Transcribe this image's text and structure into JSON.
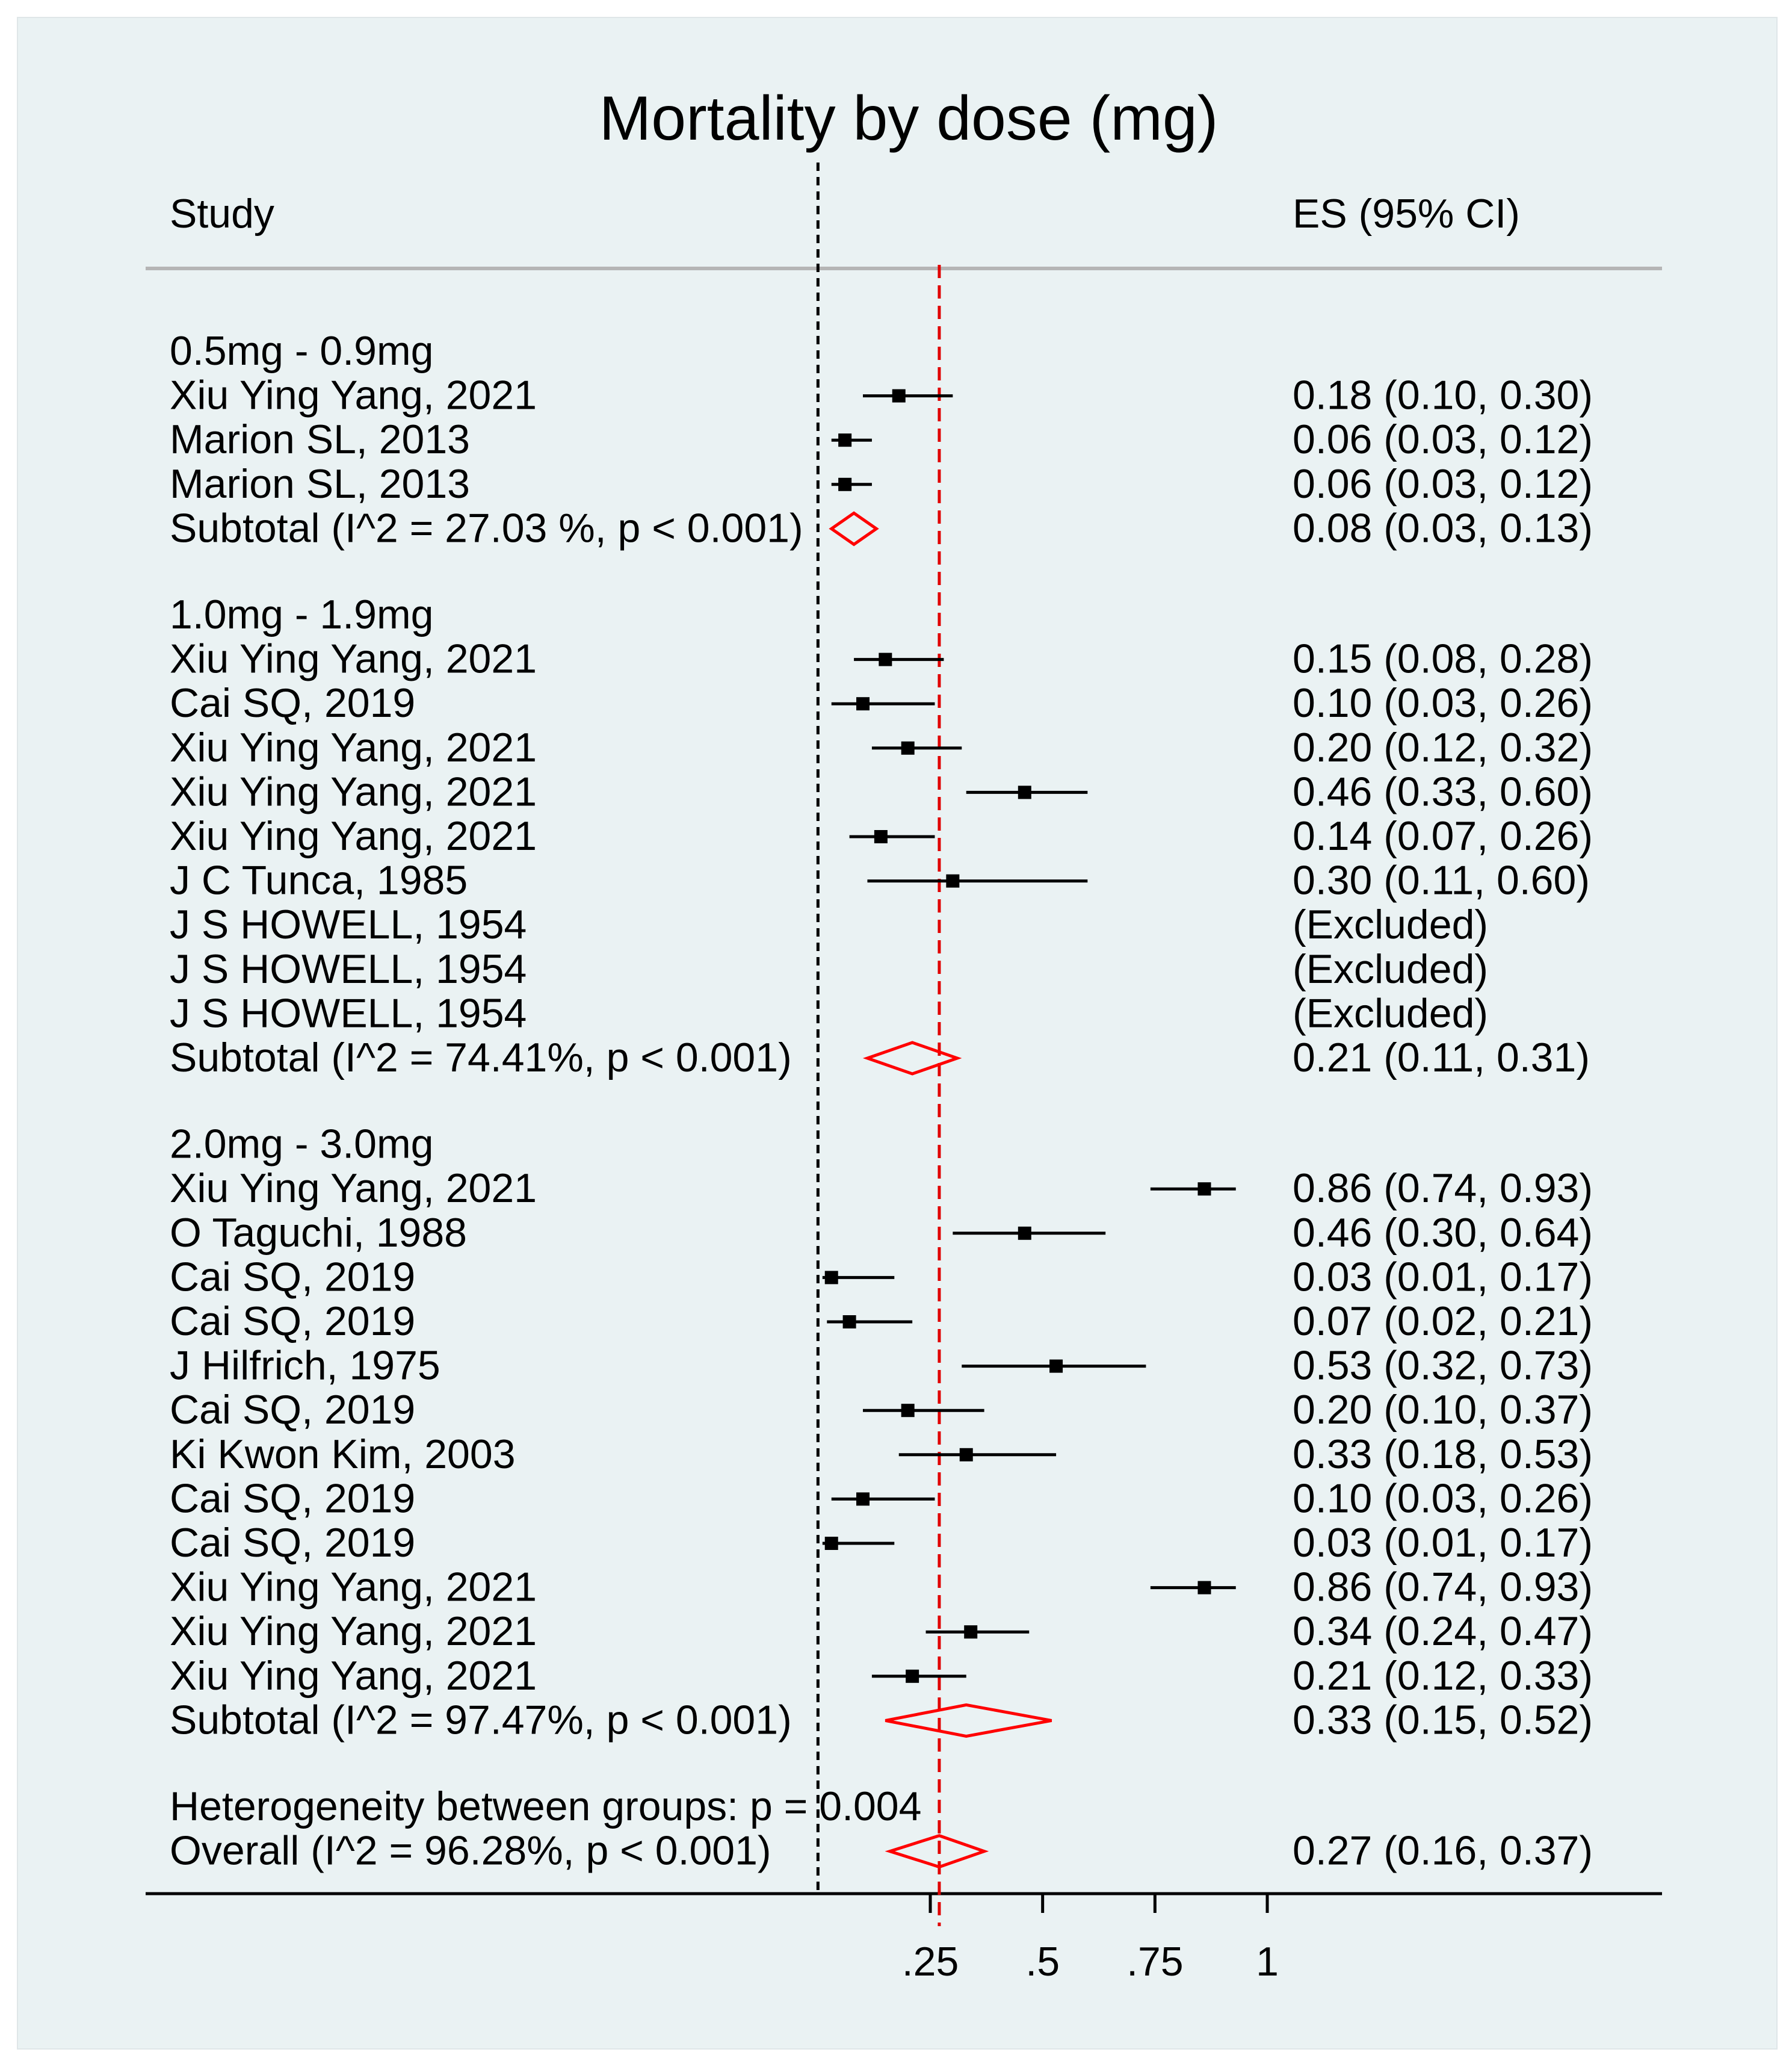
{
  "chart_data": {
    "type": "forest",
    "title": "Mortality by dose (mg)",
    "column_headers": {
      "study": "Study",
      "es": "ES (95% CI)"
    },
    "xaxis": {
      "range": [
        -0.03,
        1.0
      ],
      "ticks": [
        0.25,
        0.5,
        0.75,
        1
      ],
      "tick_labels": [
        ".25",
        ".5",
        ".75",
        "1"
      ]
    },
    "null_line": 0,
    "overall_line": 0.27,
    "rows": [
      {
        "kind": "group",
        "label": "0.5mg - 0.9mg"
      },
      {
        "kind": "study",
        "label": "Xiu Ying Yang, 2021",
        "es": 0.18,
        "lo": 0.1,
        "hi": 0.3,
        "es_text": "0.18 (0.10, 0.30)"
      },
      {
        "kind": "study",
        "label": "Marion SL, 2013",
        "es": 0.06,
        "lo": 0.03,
        "hi": 0.12,
        "es_text": "0.06 (0.03, 0.12)"
      },
      {
        "kind": "study",
        "label": "Marion SL, 2013",
        "es": 0.06,
        "lo": 0.03,
        "hi": 0.12,
        "es_text": "0.06 (0.03, 0.12)"
      },
      {
        "kind": "subtotal",
        "label": "Subtotal  (I^2 = 27.03 %, p < 0.001)",
        "es": 0.08,
        "lo": 0.03,
        "hi": 0.13,
        "es_text": "0.08 (0.03, 0.13)"
      },
      {
        "kind": "gap"
      },
      {
        "kind": "group",
        "label": "1.0mg - 1.9mg"
      },
      {
        "kind": "study",
        "label": "Xiu Ying Yang, 2021",
        "es": 0.15,
        "lo": 0.08,
        "hi": 0.28,
        "es_text": "0.15 (0.08, 0.28)"
      },
      {
        "kind": "study",
        "label": "Cai SQ, 2019",
        "es": 0.1,
        "lo": 0.03,
        "hi": 0.26,
        "es_text": "0.10 (0.03, 0.26)"
      },
      {
        "kind": "study",
        "label": "Xiu Ying Yang, 2021",
        "es": 0.2,
        "lo": 0.12,
        "hi": 0.32,
        "es_text": "0.20 (0.12, 0.32)"
      },
      {
        "kind": "study",
        "label": "Xiu Ying Yang, 2021",
        "es": 0.46,
        "lo": 0.33,
        "hi": 0.6,
        "es_text": "0.46 (0.33, 0.60)"
      },
      {
        "kind": "study",
        "label": "Xiu Ying Yang, 2021",
        "es": 0.14,
        "lo": 0.07,
        "hi": 0.26,
        "es_text": "0.14 (0.07, 0.26)"
      },
      {
        "kind": "study",
        "label": "J C Tunca, 1985",
        "es": 0.3,
        "lo": 0.11,
        "hi": 0.6,
        "es_text": "0.30 (0.11, 0.60)"
      },
      {
        "kind": "excluded",
        "label": "J S HOWELL, 1954",
        "es_text": "(Excluded)"
      },
      {
        "kind": "excluded",
        "label": "J S HOWELL, 1954",
        "es_text": "(Excluded)"
      },
      {
        "kind": "excluded",
        "label": "J S HOWELL, 1954",
        "es_text": "(Excluded)"
      },
      {
        "kind": "subtotal",
        "label": "Subtotal  (I^2 = 74.41%, p < 0.001)",
        "es": 0.21,
        "lo": 0.11,
        "hi": 0.31,
        "es_text": "0.21 (0.11, 0.31)"
      },
      {
        "kind": "gap"
      },
      {
        "kind": "group",
        "label": "2.0mg - 3.0mg"
      },
      {
        "kind": "study",
        "label": "Xiu Ying Yang, 2021",
        "es": 0.86,
        "lo": 0.74,
        "hi": 0.93,
        "es_text": "0.86 (0.74, 0.93)"
      },
      {
        "kind": "study",
        "label": "O Taguchi, 1988",
        "es": 0.46,
        "lo": 0.3,
        "hi": 0.64,
        "es_text": "0.46 (0.30, 0.64)"
      },
      {
        "kind": "study",
        "label": "Cai SQ, 2019",
        "es": 0.03,
        "lo": 0.01,
        "hi": 0.17,
        "es_text": "0.03 (0.01, 0.17)"
      },
      {
        "kind": "study",
        "label": "Cai SQ, 2019",
        "es": 0.07,
        "lo": 0.02,
        "hi": 0.21,
        "es_text": "0.07 (0.02, 0.21)"
      },
      {
        "kind": "study",
        "label": "J Hilfrich, 1975",
        "es": 0.53,
        "lo": 0.32,
        "hi": 0.73,
        "es_text": "0.53 (0.32, 0.73)"
      },
      {
        "kind": "study",
        "label": "Cai SQ, 2019",
        "es": 0.2,
        "lo": 0.1,
        "hi": 0.37,
        "es_text": "0.20 (0.10, 0.37)"
      },
      {
        "kind": "study",
        "label": "Ki Kwon Kim, 2003",
        "es": 0.33,
        "lo": 0.18,
        "hi": 0.53,
        "es_text": "0.33 (0.18, 0.53)"
      },
      {
        "kind": "study",
        "label": "Cai SQ, 2019",
        "es": 0.1,
        "lo": 0.03,
        "hi": 0.26,
        "es_text": "0.10 (0.03, 0.26)"
      },
      {
        "kind": "study",
        "label": "Cai SQ, 2019",
        "es": 0.03,
        "lo": 0.01,
        "hi": 0.17,
        "es_text": "0.03 (0.01, 0.17)"
      },
      {
        "kind": "study",
        "label": "Xiu Ying Yang, 2021",
        "es": 0.86,
        "lo": 0.74,
        "hi": 0.93,
        "es_text": "0.86 (0.74, 0.93)"
      },
      {
        "kind": "study",
        "label": "Xiu Ying Yang, 2021",
        "es": 0.34,
        "lo": 0.24,
        "hi": 0.47,
        "es_text": "0.34 (0.24, 0.47)"
      },
      {
        "kind": "study",
        "label": "Xiu Ying Yang, 2021",
        "es": 0.21,
        "lo": 0.12,
        "hi": 0.33,
        "es_text": "0.21 (0.12, 0.33)"
      },
      {
        "kind": "subtotal",
        "label": "Subtotal  (I^2 = 97.47%, p < 0.001)",
        "es": 0.33,
        "lo": 0.15,
        "hi": 0.52,
        "es_text": "0.33 (0.15, 0.52)"
      },
      {
        "kind": "gap"
      },
      {
        "kind": "note",
        "label": "Heterogeneity between groups: p = 0.004"
      },
      {
        "kind": "overall",
        "label": "Overall  (I^2 = 96.28%, p < 0.001)",
        "es": 0.27,
        "lo": 0.16,
        "hi": 0.37,
        "es_text": "0.27 (0.16, 0.37)"
      }
    ],
    "colors": {
      "marker": "#000000",
      "diamond": "#ff0000",
      "overall_line": "#e00000",
      "null_line": "#000000",
      "rule": "#b5b5b5"
    }
  }
}
